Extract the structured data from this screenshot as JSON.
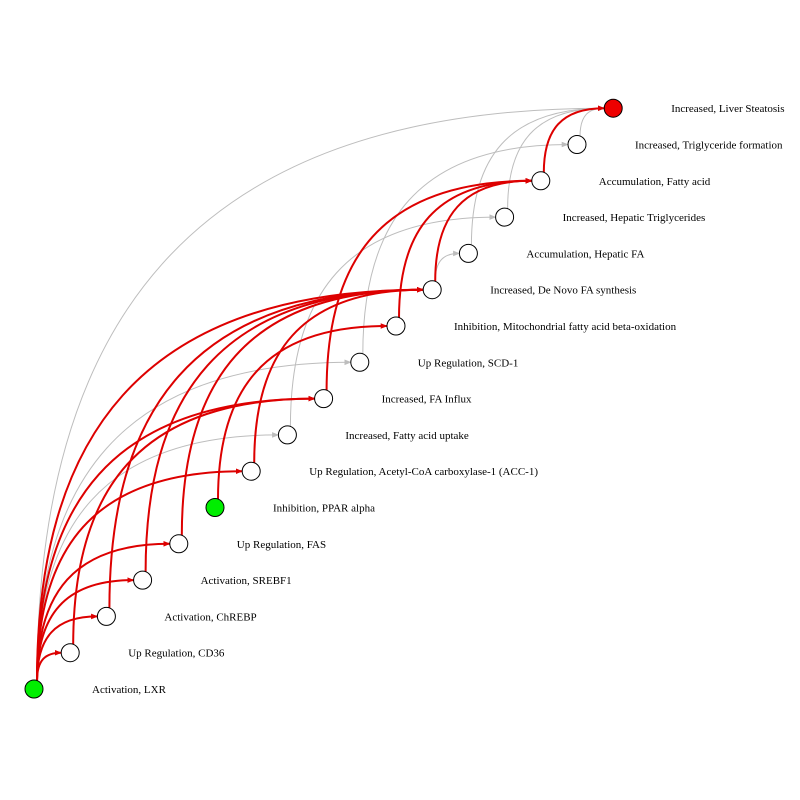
{
  "colors": {
    "background": "#ffffff",
    "edge_key": "#dd0000",
    "edge_other": "#bdbdbd",
    "node_default": "#ffffff",
    "node_stroke": "#000000",
    "node_mie": "#00ee00",
    "node_ao": "#ee0000"
  },
  "nodes": [
    {
      "id": 0,
      "label": "Activation, LXR",
      "role": "mie"
    },
    {
      "id": 1,
      "label": "Up Regulation, CD36",
      "role": "ke"
    },
    {
      "id": 2,
      "label": "Activation, ChREBP",
      "role": "ke"
    },
    {
      "id": 3,
      "label": "Activation, SREBF1",
      "role": "ke"
    },
    {
      "id": 4,
      "label": "Up Regulation, FAS",
      "role": "ke"
    },
    {
      "id": 5,
      "label": "Inhibition, PPAR alpha",
      "role": "mie"
    },
    {
      "id": 6,
      "label": "Up Regulation, Acetyl-CoA carboxylase-1 (ACC-1)",
      "role": "ke"
    },
    {
      "id": 7,
      "label": "Increased, Fatty acid uptake",
      "role": "ke"
    },
    {
      "id": 8,
      "label": "Increased, FA Influx",
      "role": "ke"
    },
    {
      "id": 9,
      "label": "Up Regulation, SCD-1",
      "role": "ke"
    },
    {
      "id": 10,
      "label": "Inhibition, Mitochondrial fatty acid beta-oxidation",
      "role": "ke"
    },
    {
      "id": 11,
      "label": "Increased, De Novo FA synthesis",
      "role": "ke"
    },
    {
      "id": 12,
      "label": "Accumulation, Hepatic FA",
      "role": "ke"
    },
    {
      "id": 13,
      "label": "Increased, Hepatic Triglycerides",
      "role": "ke"
    },
    {
      "id": 14,
      "label": "Accumulation, Fatty acid",
      "role": "ke"
    },
    {
      "id": 15,
      "label": "Increased, Triglyceride formation",
      "role": "ke"
    },
    {
      "id": 16,
      "label": "Increased, Liver Steatosis",
      "role": "ao"
    }
  ],
  "edges": [
    {
      "from": 0,
      "to": 1,
      "type": "key"
    },
    {
      "from": 0,
      "to": 2,
      "type": "key"
    },
    {
      "from": 0,
      "to": 3,
      "type": "key"
    },
    {
      "from": 0,
      "to": 4,
      "type": "key"
    },
    {
      "from": 0,
      "to": 6,
      "type": "key"
    },
    {
      "from": 0,
      "to": 7,
      "type": "other"
    },
    {
      "from": 0,
      "to": 8,
      "type": "key"
    },
    {
      "from": 0,
      "to": 9,
      "type": "other"
    },
    {
      "from": 0,
      "to": 11,
      "type": "key"
    },
    {
      "from": 0,
      "to": 16,
      "type": "other"
    },
    {
      "from": 1,
      "to": 8,
      "type": "key"
    },
    {
      "from": 2,
      "to": 11,
      "type": "key"
    },
    {
      "from": 3,
      "to": 11,
      "type": "key"
    },
    {
      "from": 4,
      "to": 11,
      "type": "key"
    },
    {
      "from": 5,
      "to": 10,
      "type": "key"
    },
    {
      "from": 6,
      "to": 11,
      "type": "key"
    },
    {
      "from": 7,
      "to": 13,
      "type": "other"
    },
    {
      "from": 8,
      "to": 14,
      "type": "key"
    },
    {
      "from": 9,
      "to": 15,
      "type": "other"
    },
    {
      "from": 10,
      "to": 14,
      "type": "key"
    },
    {
      "from": 11,
      "to": 14,
      "type": "key"
    },
    {
      "from": 11,
      "to": 12,
      "type": "other"
    },
    {
      "from": 12,
      "to": 16,
      "type": "other"
    },
    {
      "from": 13,
      "to": 16,
      "type": "other"
    },
    {
      "from": 14,
      "to": 16,
      "type": "key"
    },
    {
      "from": 15,
      "to": 16,
      "type": "other"
    }
  ]
}
